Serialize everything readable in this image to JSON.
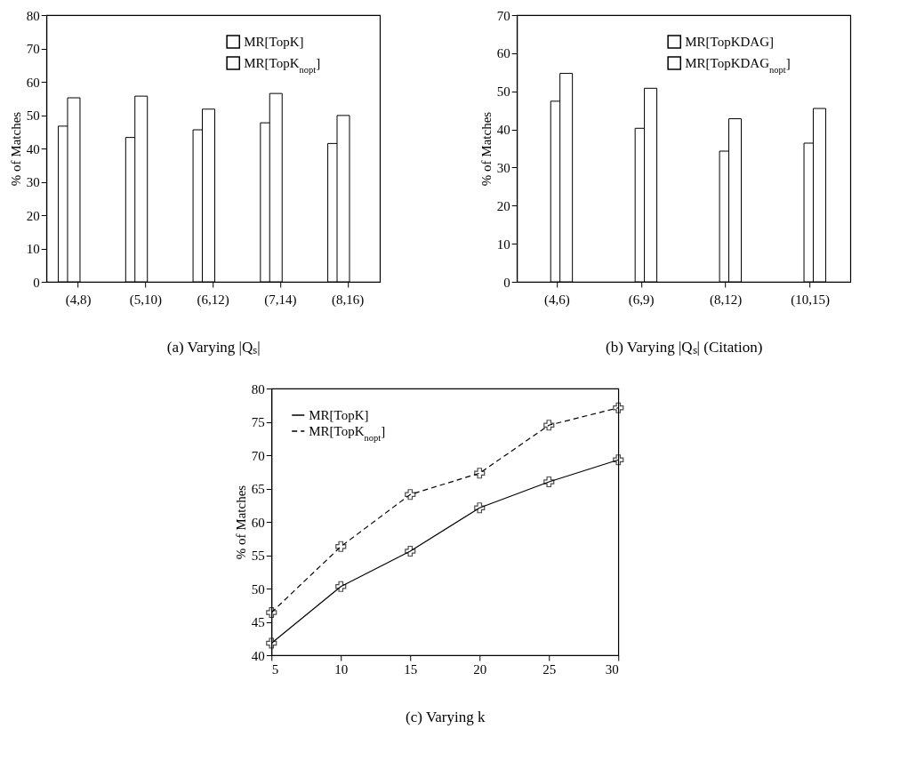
{
  "chart_data": [
    {
      "type": "bar",
      "xlabel": "(a)  Varying |Qₛ|",
      "ylabel": "% of Matches",
      "categories": [
        "(4,8)",
        "(5,10)",
        "(6,12)",
        "(7,14)",
        "(8,16)"
      ],
      "ylim": [
        0,
        80
      ],
      "yticks": [
        0,
        10,
        20,
        30,
        40,
        50,
        60,
        70,
        80
      ],
      "legend": "top right",
      "grid": false,
      "series": [
        {
          "name": "MR[TopK]",
          "color": "#ffffff",
          "values": [
            46.7,
            43.3,
            45.6,
            47.7,
            41.5
          ]
        },
        {
          "name": "MR[TopK$_{nopt}$]",
          "color": "#ffffff",
          "values": [
            55.2,
            55.7,
            51.8,
            56.5,
            49.9
          ]
        }
      ]
    },
    {
      "type": "bar",
      "xlabel": "(b)  Varying |Qₛ| (Citation)",
      "ylabel": "% of Matches",
      "categories": [
        "(4,6)",
        "(6,9)",
        "(8,12)",
        "(10,15)"
      ],
      "ylim": [
        0,
        70
      ],
      "yticks": [
        0,
        10,
        20,
        30,
        40,
        50,
        60,
        70
      ],
      "legend": "top right",
      "grid": false,
      "series": [
        {
          "name": "MR[TopKDAG]",
          "color": "#ffffff",
          "values": [
            47.4,
            40.3,
            34.3,
            36.4
          ]
        },
        {
          "name": "MR[TopKDAG$_{nopt}$]",
          "color": "#ffffff",
          "values": [
            54.7,
            50.8,
            42.8,
            45.5
          ]
        }
      ]
    },
    {
      "type": "line",
      "xlabel": "(c)  Varying k",
      "ylabel": "% of Matches",
      "x": [
        5,
        10,
        15,
        20,
        25,
        30
      ],
      "xlim": [
        5,
        30
      ],
      "xticks": [
        5,
        10,
        15,
        20,
        25,
        30
      ],
      "ylim": [
        40,
        80
      ],
      "yticks": [
        40,
        45,
        50,
        55,
        60,
        65,
        70,
        75,
        80
      ],
      "legend": "top left",
      "grid": false,
      "marker": "cross",
      "series": [
        {
          "name": "MR[TopK]",
          "color": "#000000",
          "line_style": "solid",
          "values": [
            41.8,
            50.3,
            55.6,
            62.1,
            66.0,
            69.3
          ]
        },
        {
          "name": "MR[TopK$_{nopt}$]",
          "color": "#000000",
          "line_style": "dashed",
          "values": [
            46.4,
            56.3,
            64.1,
            67.3,
            74.5,
            77.1
          ]
        }
      ]
    }
  ]
}
